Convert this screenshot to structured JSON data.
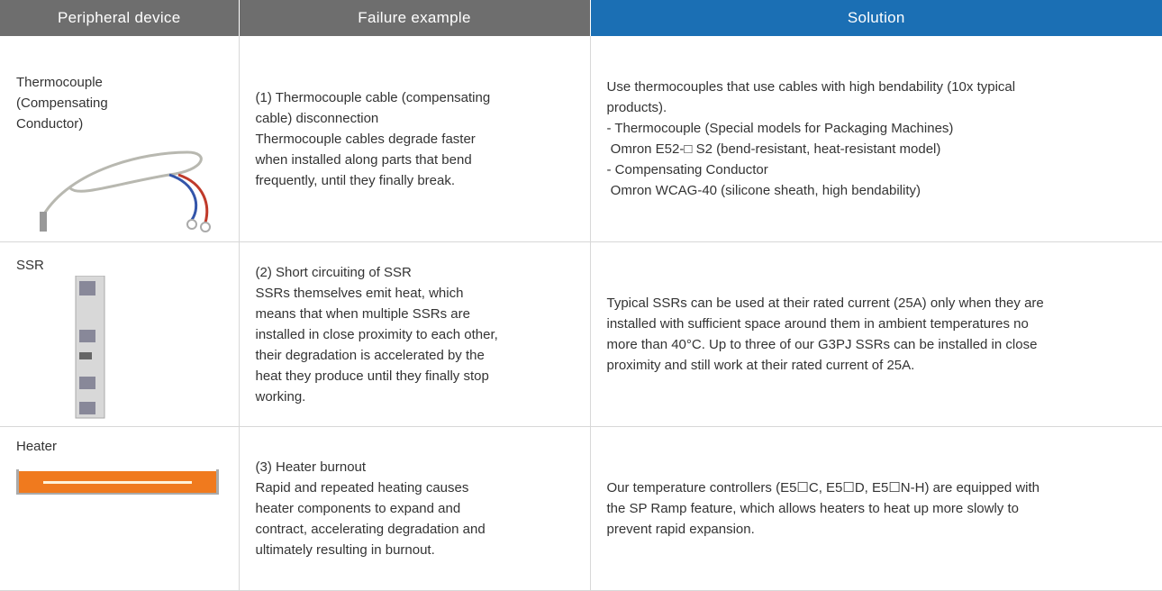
{
  "table": {
    "headers": [
      "Peripheral device",
      "Failure example",
      "Solution"
    ],
    "rows": [
      {
        "device": [
          "Thermocouple",
          "(Compensating",
          "Conductor)"
        ],
        "failure": [
          "(1) Thermocouple cable (compensating",
          "cable) disconnection",
          "Thermocouple cables degrade faster",
          "when installed along parts that bend",
          "frequently, until they finally break."
        ],
        "solution": [
          "Use thermocouples that use cables with high bendability (10x typical",
          "products).",
          "- Thermocouple (Special models for Packaging Machines)",
          " Omron E52-□ S2 (bend-resistant, heat-resistant model)",
          "- Compensating Conductor",
          " Omron WCAG-40 (silicone sheath, high bendability)"
        ]
      },
      {
        "device": [
          "SSR"
        ],
        "failure": [
          "(2) Short circuiting of SSR",
          "SSRs themselves emit heat, which",
          "means that when multiple SSRs are",
          "installed in close proximity to each other,",
          "their degradation is accelerated by the",
          "heat they produce until they finally stop",
          "working."
        ],
        "solution": [
          "Typical SSRs can be used at their rated current (25A) only when they are",
          "installed with sufficient space around them in ambient temperatures no",
          "more than 40°C. Up to three of our G3PJ SSRs can be installed in close",
          "proximity and still work at their rated current of 25A."
        ]
      },
      {
        "device": [
          "Heater"
        ],
        "failure": [
          "(3) Heater burnout",
          "Rapid and repeated heating causes",
          "heater components to expand and",
          "contract, accelerating degradation and",
          "ultimately resulting in burnout."
        ],
        "solution": [
          "Our temperature controllers (E5☐C, E5☐D, E5☐N-H) are equipped with",
          "the SP Ramp feature, which allows heaters to heat up more slowly to",
          "prevent rapid expansion."
        ]
      }
    ]
  }
}
